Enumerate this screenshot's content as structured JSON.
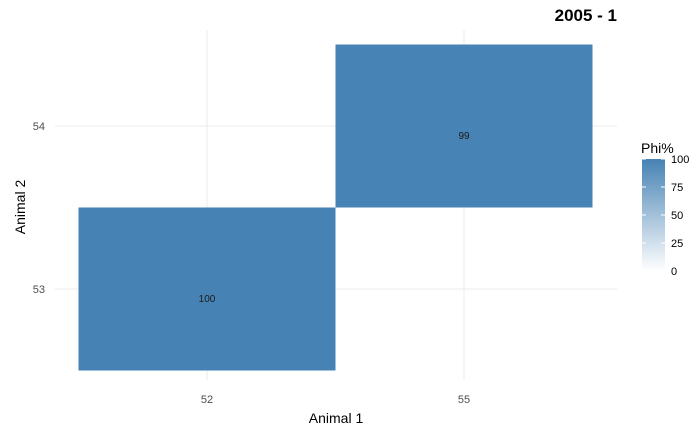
{
  "chart_data": {
    "type": "heatmap",
    "title": "2005 - 1",
    "xlabel": "Animal 1",
    "ylabel": "Animal 2",
    "x_categories": [
      "52",
      "55"
    ],
    "y_categories": [
      "53",
      "54"
    ],
    "cells": [
      {
        "x": "52",
        "y": "53",
        "value": 100,
        "label": "100"
      },
      {
        "x": "55",
        "y": "54",
        "value": 99,
        "label": "99"
      }
    ],
    "legend": {
      "title": "Phi%",
      "range": [
        0,
        100
      ],
      "ticks": [
        "0",
        "25",
        "50",
        "75",
        "100"
      ],
      "tick_values": [
        0,
        25,
        50,
        75,
        100
      ],
      "low_color": "#ffffff",
      "high_color": "#4682b4"
    },
    "grid": true
  }
}
